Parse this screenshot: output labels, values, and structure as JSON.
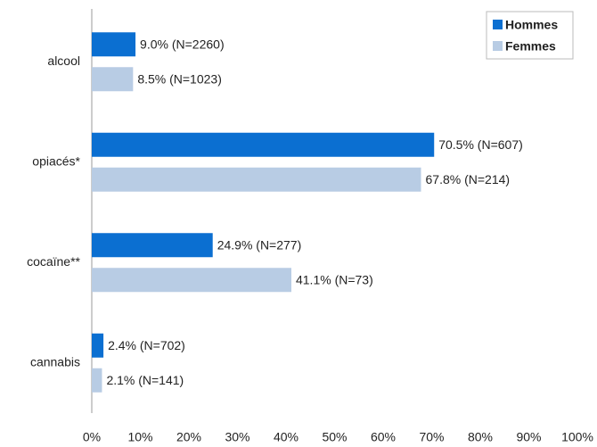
{
  "chart_data": {
    "type": "bar",
    "orientation": "horizontal",
    "categories": [
      "alcool",
      "opiacés*",
      "cocaïne**",
      "cannabis"
    ],
    "series": [
      {
        "name": "Hommes",
        "color": "#0b6fd1",
        "values": [
          9.0,
          70.5,
          24.9,
          2.4
        ],
        "value_labels": [
          "9.0% (N=2260)",
          "70.5% (N=607)",
          "24.9% (N=277)",
          "2.4% (N=702)"
        ]
      },
      {
        "name": "Femmes",
        "color": "#b8cce4",
        "values": [
          8.5,
          67.8,
          41.1,
          2.1
        ],
        "value_labels": [
          "8.5% (N=1023)",
          "67.8% (N=214)",
          "41.1% (N=73)",
          "2.1% (N=141)"
        ]
      }
    ],
    "xlim": [
      0,
      100
    ],
    "xticks": [
      {
        "value": 0,
        "label": "0%"
      },
      {
        "value": 10,
        "label": "10%"
      },
      {
        "value": 20,
        "label": "20%"
      },
      {
        "value": 30,
        "label": "30%"
      },
      {
        "value": 40,
        "label": "40%"
      },
      {
        "value": 50,
        "label": "50%"
      },
      {
        "value": 60,
        "label": "60%"
      },
      {
        "value": 70,
        "label": "70%"
      },
      {
        "value": 80,
        "label": "80%"
      },
      {
        "value": 90,
        "label": "90%"
      },
      {
        "value": 100,
        "label": "100%"
      }
    ],
    "legend": "upper right",
    "grid": false
  }
}
